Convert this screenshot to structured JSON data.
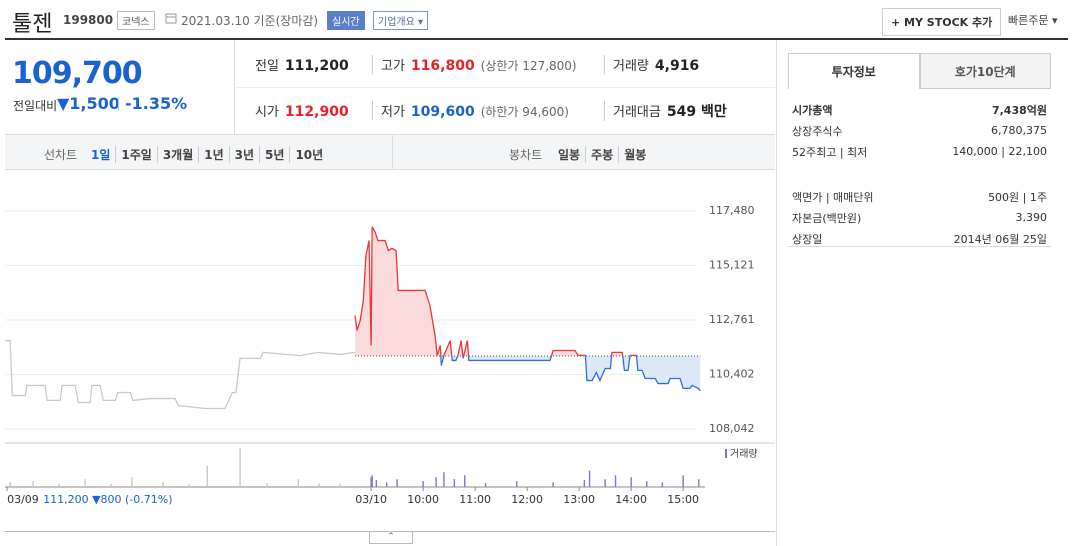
{
  "header": {
    "name": "툴젠",
    "code": "199800",
    "market": "코넥스",
    "date": "2021.03.10 기준(장마감)",
    "realtime": "실시간",
    "company": "기업개요",
    "mystock": "+ MY STOCK 추가",
    "quick_order": "빠른주문"
  },
  "quote": {
    "price": "109,700",
    "change_label": "전일대비",
    "change": "▼1,500",
    "rate": "-1.35%"
  },
  "summary": [
    [
      {
        "label": "전일",
        "value": "111,200"
      },
      {
        "label": "고가",
        "value": "116,800",
        "note": "(상한가 127,800)"
      },
      {
        "label": "거래량",
        "value": "4,916"
      }
    ],
    [
      {
        "label": "시가",
        "value": "112,900"
      },
      {
        "label": "저가",
        "value": "109,600",
        "note": "(하한가 94,600)"
      },
      {
        "label": "거래대금",
        "value": "549 백만"
      }
    ]
  ],
  "tabs": {
    "line_label": "선차트",
    "line": [
      "1일",
      "1주일",
      "3개월",
      "1년",
      "3년",
      "5년",
      "10년"
    ],
    "candle_label": "봉차트",
    "candle": [
      "일봉",
      "주봉",
      "월봉"
    ]
  },
  "chart_data": {
    "type": "line",
    "xlim": [
      1.96,
      15.42
    ],
    "ylim": [
      107566,
      118822
    ],
    "yticks": [
      {
        "value": 117480,
        "label": "117,480"
      },
      {
        "value": 115121,
        "label": "115,121"
      },
      {
        "value": 112761,
        "label": "112,761"
      },
      {
        "value": 110402,
        "label": "110,402"
      },
      {
        "value": 108042,
        "label": "108,042"
      }
    ],
    "xticks": [
      {
        "value": 2.0,
        "label": "03/09"
      },
      {
        "value": 9.0,
        "label": "03/10"
      },
      {
        "value": 10,
        "label": "10:00"
      },
      {
        "value": 11,
        "label": "11:00"
      },
      {
        "value": 12,
        "label": "12:00"
      },
      {
        "value": 13,
        "label": "13:00"
      },
      {
        "value": 14,
        "label": "14:00"
      },
      {
        "value": 15,
        "label": "15:00"
      }
    ],
    "prev_note": "111,200 ▼800 (-0.71%)",
    "grid": true,
    "base": 111200,
    "series": [
      {
        "color": "#c9c9c9",
        "x": [
          1.96,
          2.06,
          2.1,
          2.35,
          2.38,
          2.73,
          2.77,
          3.02,
          3.06,
          3.31,
          3.37,
          3.6,
          3.63,
          3.79,
          3.85,
          4.08,
          4.13,
          4.37,
          4.42,
          4.75,
          5.23,
          5.29,
          5.81,
          6.19,
          6.33,
          6.4,
          6.48,
          6.87,
          6.92,
          7.63,
          7.98,
          8.4,
          8.69
        ],
        "values": [
          111870,
          111870,
          109490,
          109490,
          109930,
          109930,
          109280,
          109280,
          109930,
          109930,
          109190,
          109190,
          109930,
          109930,
          109280,
          109280,
          109620,
          109620,
          109280,
          109360,
          109360,
          109060,
          108930,
          108930,
          109620,
          109620,
          111100,
          111100,
          111360,
          111220,
          111360,
          111270,
          111360
        ]
      },
      {
        "color": "#e8383d",
        "color_down": "#2f6fd6",
        "fill": "#fbdadb",
        "fill_down": "#dce8f8",
        "x": [
          8.69,
          8.73,
          8.79,
          8.85,
          8.9,
          8.96,
          9.0,
          9.02,
          9.08,
          9.13,
          9.27,
          9.33,
          9.4,
          9.48,
          9.52,
          10.04,
          10.13,
          10.23,
          10.27,
          10.33,
          10.35,
          10.4,
          10.52,
          10.56,
          10.63,
          10.67,
          10.73,
          10.77,
          10.85,
          10.88,
          12.44,
          12.5,
          12.92,
          12.98,
          13.12,
          13.15,
          13.25,
          13.33,
          13.4,
          13.5,
          13.6,
          13.63,
          13.83,
          13.87,
          13.94,
          13.98,
          14.1,
          14.13,
          14.21,
          14.27,
          14.46,
          14.52,
          14.71,
          14.75,
          14.94,
          15.0,
          15.13,
          15.17,
          15.29,
          15.33
        ],
        "values": [
          112960,
          112310,
          112740,
          113610,
          115560,
          116200,
          111660,
          116800,
          116550,
          116200,
          116200,
          115770,
          115860,
          115770,
          114040,
          114040,
          113390,
          112090,
          111230,
          111660,
          110790,
          111230,
          111870,
          111010,
          111010,
          111230,
          111870,
          111100,
          111870,
          111010,
          111010,
          111440,
          111440,
          111230,
          111230,
          110140,
          110140,
          110490,
          110140,
          110660,
          110660,
          111360,
          111360,
          110580,
          110580,
          111230,
          111230,
          110580,
          110580,
          110230,
          110230,
          110010,
          110010,
          110230,
          110230,
          109800,
          109800,
          109930,
          109800,
          109700
        ]
      }
    ],
    "volume": {
      "legend": "거래량",
      "ylim": [
        0,
        1000
      ],
      "series": [
        {
          "color": "#c9c9c9",
          "x": [
            2.06,
            2.5,
            3.0,
            3.5,
            4.0,
            4.4,
            5.0,
            5.5,
            5.85,
            6.48,
            7.0,
            7.6,
            8.0,
            8.4
          ],
          "values": [
            120,
            150,
            90,
            200,
            80,
            260,
            120,
            60,
            550,
            1000,
            100,
            200,
            90,
            80
          ]
        },
        {
          "color": "#8176c6",
          "x": [
            9.0,
            9.02,
            9.1,
            9.3,
            9.5,
            10.0,
            10.25,
            10.4,
            10.6,
            10.8,
            11.2,
            11.8,
            12.5,
            13.1,
            13.2,
            13.5,
            13.7,
            14.0,
            14.3,
            14.6,
            15.0,
            15.3
          ],
          "values": [
            250,
            300,
            180,
            120,
            200,
            150,
            250,
            380,
            200,
            300,
            100,
            150,
            120,
            180,
            420,
            200,
            300,
            250,
            150,
            120,
            300,
            200
          ]
        }
      ]
    }
  },
  "invest": {
    "tabs": [
      "투자정보",
      "호가10단계"
    ],
    "rows": [
      {
        "label": "시가총액",
        "value": "7,438억원"
      },
      {
        "label": "상장주식수",
        "value": "6,780,375"
      },
      {
        "label": "52주최고 | 최저",
        "value": "140,000 | 22,100"
      },
      {
        "label": "액면가 | 매매단위",
        "value": "500원 | 1주"
      },
      {
        "label": "자본금(백만원)",
        "value": "3,390"
      },
      {
        "label": "상장일",
        "value": "2014년 06월 25일"
      }
    ]
  }
}
